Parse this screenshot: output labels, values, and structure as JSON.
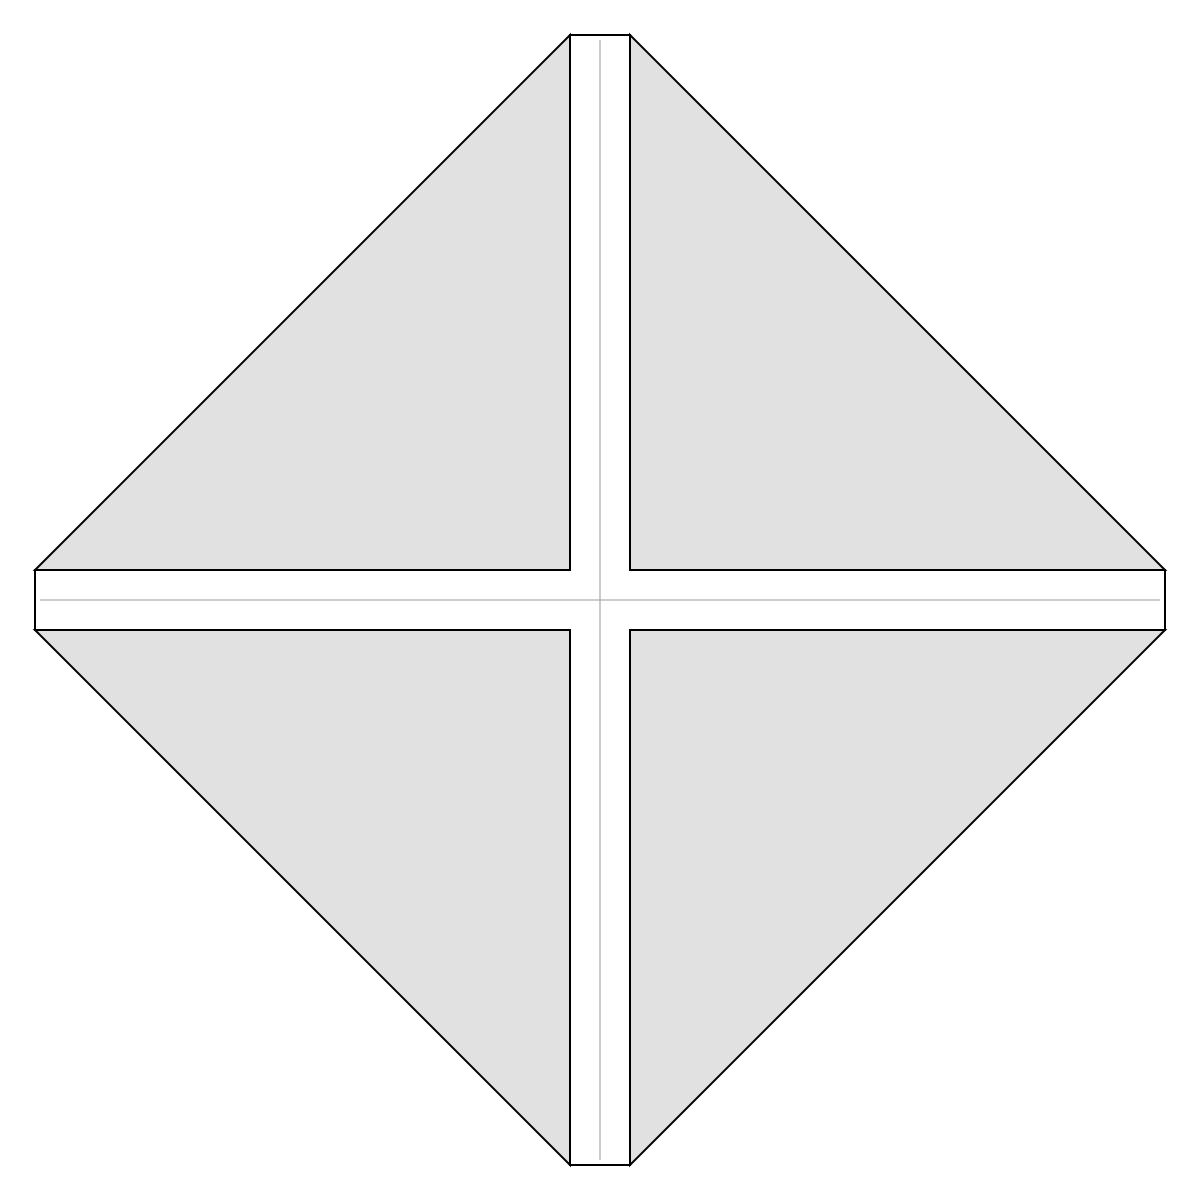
{
  "colors": {
    "background": "#ffffff",
    "panel_fill": "#e1e1e1",
    "cross_fill": "#ffffff",
    "outline": "#000000",
    "center_line": "#9a9a9a"
  }
}
